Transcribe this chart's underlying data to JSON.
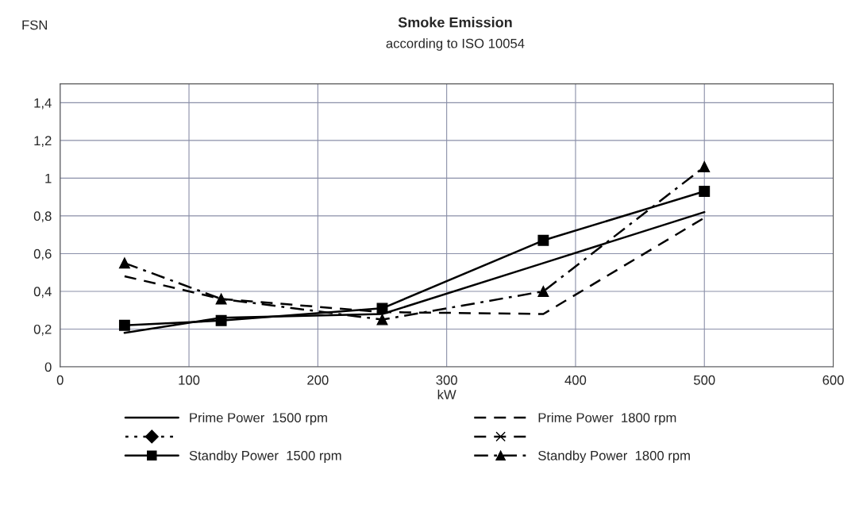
{
  "chart_data": {
    "type": "line",
    "title": "Smoke Emission",
    "subtitle": "according to ISO 10054",
    "xlabel": "kW",
    "ylabel": "FSN",
    "x": [
      50,
      125,
      250,
      375,
      500
    ],
    "series": [
      {
        "name": "Prime Power  1500 rpm",
        "color": "#000000",
        "line_style": "solid",
        "marker": "none",
        "values": [
          0.18,
          0.26,
          0.28,
          0.55,
          0.82
        ]
      },
      {
        "color": "#000000",
        "line_style": "dotted",
        "marker": "diamond",
        "values": [
          null,
          null,
          null,
          null,
          null
        ]
      },
      {
        "name": "Standby Power  1500 rpm",
        "color": "#000000",
        "line_style": "solid",
        "marker": "square",
        "values": [
          0.22,
          0.245,
          0.31,
          0.67,
          0.93
        ]
      },
      {
        "name": "Prime Power  1800 rpm",
        "color": "#000000",
        "line_style": "dashed",
        "marker": "none",
        "values": [
          0.48,
          0.36,
          0.29,
          0.28,
          0.79
        ]
      },
      {
        "color": "#000000",
        "line_style": "dashed",
        "marker": "cross",
        "values": [
          null,
          null,
          null,
          null,
          null
        ]
      },
      {
        "name": "Standby Power  1800 rpm",
        "color": "#000000",
        "line_style": "dashdot",
        "marker": "triangle",
        "values": [
          0.55,
          0.36,
          0.25,
          0.4,
          1.06
        ]
      }
    ],
    "xlim": [
      0,
      600
    ],
    "xticks": [
      0,
      100,
      200,
      300,
      400,
      500,
      600
    ],
    "ylim": [
      0,
      1.5
    ],
    "yticks": [
      0,
      {
        "value": 0.2,
        "label": "0,2"
      },
      {
        "value": 0.4,
        "label": "0,4"
      },
      {
        "value": 0.6,
        "label": "0,6"
      },
      {
        "value": 0.8,
        "label": "0,8"
      },
      1,
      {
        "value": 1.2,
        "label": "1,2"
      },
      {
        "value": 1.4,
        "label": "1,4"
      }
    ],
    "grid": true,
    "legend": "bottom"
  }
}
